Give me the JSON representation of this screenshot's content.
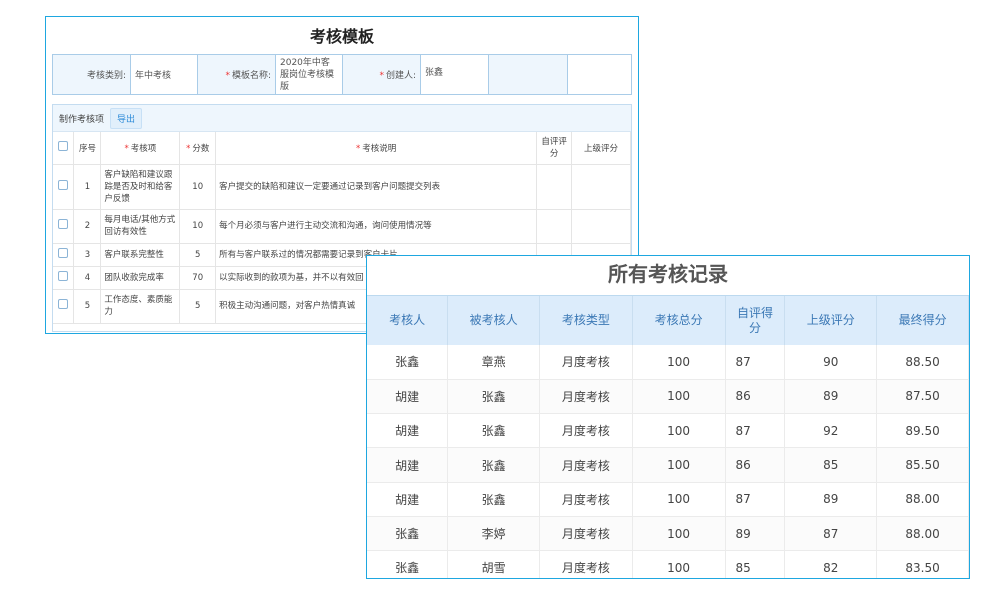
{
  "template": {
    "title": "考核模板",
    "category_label": "考核类别:",
    "category_value": "年中考核",
    "name_label": "模板名称:",
    "name_value": "2020年中客服岗位考核模版",
    "creator_label": "创建人:",
    "creator_value": "张鑫",
    "section_label": "制作考核项",
    "export_label": "导出",
    "columns": [
      "序号",
      "考核项",
      "分数",
      "考核说明",
      "自评评分",
      "上级评分"
    ],
    "rows": [
      {
        "no": "1",
        "item": "客户缺陷和建议跟踪是否及时和给客户反馈",
        "score": "10",
        "desc": "客户提交的缺陷和建议一定要通过记录到客户问题提交列表"
      },
      {
        "no": "2",
        "item": "每月电话/其他方式回访有效性",
        "score": "10",
        "desc": "每个月必须与客户进行主动交流和沟通，询问使用情况等"
      },
      {
        "no": "3",
        "item": "客户联系完整性",
        "score": "5",
        "desc": "所有与客户联系过的情况都需要记录到客户卡片"
      },
      {
        "no": "4",
        "item": "团队收款完成率",
        "score": "70",
        "desc": "以实际收到的款项为基，并不以有效回"
      },
      {
        "no": "5",
        "item": "工作态度、素质能力",
        "score": "5",
        "desc": "积极主动沟通问题，对客户热情真诚"
      }
    ]
  },
  "records": {
    "title": "所有考核记录",
    "columns": [
      "考核人",
      "被考核人",
      "考核类型",
      "考核总分",
      "自评得分",
      "上级评分",
      "最终得分"
    ],
    "rows": [
      [
        "张鑫",
        "章燕",
        "月度考核",
        "100",
        "87",
        "90",
        "88.50"
      ],
      [
        "胡建",
        "张鑫",
        "月度考核",
        "100",
        "86",
        "89",
        "87.50"
      ],
      [
        "胡建",
        "张鑫",
        "月度考核",
        "100",
        "87",
        "92",
        "89.50"
      ],
      [
        "胡建",
        "张鑫",
        "月度考核",
        "100",
        "86",
        "85",
        "85.50"
      ],
      [
        "胡建",
        "张鑫",
        "月度考核",
        "100",
        "87",
        "89",
        "88.00"
      ],
      [
        "张鑫",
        "李婷",
        "月度考核",
        "100",
        "89",
        "87",
        "88.00"
      ],
      [
        "张鑫",
        "胡雪",
        "月度考核",
        "100",
        "85",
        "82",
        "83.50"
      ]
    ]
  }
}
